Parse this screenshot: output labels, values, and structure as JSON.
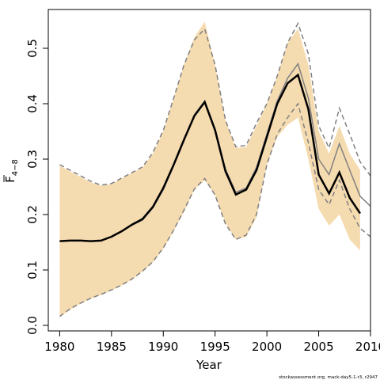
{
  "chart_data": {
    "type": "line",
    "xlabel": "Year",
    "ylabel": {
      "main": "F",
      "sub": "4−8"
    },
    "xlim": [
      1978.9,
      2010
    ],
    "ylim": [
      -0.01,
      0.57
    ],
    "xticks": [
      1980,
      1985,
      1990,
      1995,
      2000,
      2005,
      2010
    ],
    "yticks": [
      0.0,
      0.1,
      0.2,
      0.3,
      0.4,
      0.5
    ],
    "ytick_labels": [
      "0.0",
      "0.1",
      "0.2",
      "0.3",
      "0.4",
      "0.5"
    ],
    "grid": false,
    "footnote": "stockassessment.org, mack-day5-1-r3, r2947",
    "colors": {
      "band": "#f5dbb0",
      "estimate": "#000000",
      "previous": "#808080",
      "previous_ci": "#808080"
    },
    "series": [
      {
        "role": "ci_band",
        "x": [
          1980,
          1981,
          1982,
          1983,
          1984,
          1985,
          1986,
          1987,
          1988,
          1989,
          1990,
          1991,
          1992,
          1993,
          1994,
          1995,
          1996,
          1997,
          1998,
          1999,
          2000,
          2001,
          2002,
          2003,
          2004,
          2005,
          2006,
          2007,
          2008,
          2009
        ],
        "upper": [
          0.288,
          0.278,
          0.268,
          0.258,
          0.252,
          0.255,
          0.265,
          0.275,
          0.285,
          0.31,
          0.35,
          0.41,
          0.47,
          0.52,
          0.548,
          0.47,
          0.37,
          0.32,
          0.322,
          0.36,
          0.4,
          0.45,
          0.51,
          0.535,
          0.47,
          0.35,
          0.31,
          0.36,
          0.31,
          0.28
        ],
        "lower": [
          0.015,
          0.028,
          0.039,
          0.048,
          0.055,
          0.063,
          0.072,
          0.083,
          0.097,
          0.114,
          0.138,
          0.17,
          0.205,
          0.245,
          0.262,
          0.235,
          0.185,
          0.155,
          0.16,
          0.195,
          0.29,
          0.34,
          0.362,
          0.375,
          0.3,
          0.21,
          0.18,
          0.2,
          0.155,
          0.135
        ]
      },
      {
        "role": "estimate",
        "x": [
          1980,
          1981,
          1982,
          1983,
          1984,
          1985,
          1986,
          1987,
          1988,
          1989,
          1990,
          1991,
          1992,
          1993,
          1994,
          1995,
          1996,
          1997,
          1998,
          1999,
          2000,
          2001,
          2002,
          2003,
          2004,
          2005,
          2006,
          2007,
          2008,
          2009
        ],
        "y": [
          0.152,
          0.153,
          0.153,
          0.152,
          0.153,
          0.16,
          0.17,
          0.182,
          0.192,
          0.214,
          0.248,
          0.29,
          0.335,
          0.378,
          0.403,
          0.352,
          0.278,
          0.236,
          0.245,
          0.28,
          0.34,
          0.4,
          0.437,
          0.452,
          0.39,
          0.272,
          0.238,
          0.276,
          0.23,
          0.202
        ]
      },
      {
        "role": "previous",
        "x": [
          1980,
          1981,
          1982,
          1983,
          1984,
          1985,
          1986,
          1987,
          1988,
          1989,
          1990,
          1991,
          1992,
          1993,
          1994,
          1995,
          1996,
          1997,
          1998,
          1999,
          2000,
          2001,
          2002,
          2003,
          2004,
          2005,
          2006,
          2007,
          2008,
          2009,
          2010
        ],
        "y": [
          0.152,
          0.153,
          0.153,
          0.152,
          0.153,
          0.16,
          0.17,
          0.181,
          0.19,
          0.212,
          0.245,
          0.288,
          0.333,
          0.38,
          0.405,
          0.355,
          0.282,
          0.24,
          0.248,
          0.285,
          0.345,
          0.405,
          0.446,
          0.472,
          0.41,
          0.3,
          0.272,
          0.328,
          0.28,
          0.233,
          0.215
        ]
      },
      {
        "role": "previous_upper",
        "x": [
          1980,
          1981,
          1982,
          1983,
          1984,
          1985,
          1986,
          1987,
          1988,
          1989,
          1990,
          1991,
          1992,
          1993,
          1994,
          1995,
          1996,
          1997,
          1998,
          1999,
          2000,
          2001,
          2002,
          2003,
          2004,
          2005,
          2006,
          2007,
          2008,
          2009,
          2010
        ],
        "y": [
          0.29,
          0.28,
          0.27,
          0.26,
          0.253,
          0.256,
          0.266,
          0.276,
          0.286,
          0.312,
          0.352,
          0.41,
          0.47,
          0.515,
          0.535,
          0.47,
          0.37,
          0.322,
          0.325,
          0.365,
          0.4,
          0.45,
          0.51,
          0.545,
          0.49,
          0.36,
          0.32,
          0.392,
          0.345,
          0.295,
          0.27
        ]
      },
      {
        "role": "previous_lower",
        "x": [
          1980,
          1981,
          1982,
          1983,
          1984,
          1985,
          1986,
          1987,
          1988,
          1989,
          1990,
          1991,
          1992,
          1993,
          1994,
          1995,
          1996,
          1997,
          1998,
          1999,
          2000,
          2001,
          2002,
          2003,
          2004,
          2005,
          2006,
          2007,
          2008,
          2009,
          2010
        ],
        "y": [
          0.016,
          0.03,
          0.04,
          0.049,
          0.056,
          0.064,
          0.073,
          0.084,
          0.098,
          0.115,
          0.14,
          0.172,
          0.208,
          0.246,
          0.265,
          0.235,
          0.183,
          0.155,
          0.163,
          0.2,
          0.29,
          0.345,
          0.375,
          0.4,
          0.33,
          0.245,
          0.218,
          0.262,
          0.21,
          0.175,
          0.16
        ]
      }
    ]
  }
}
